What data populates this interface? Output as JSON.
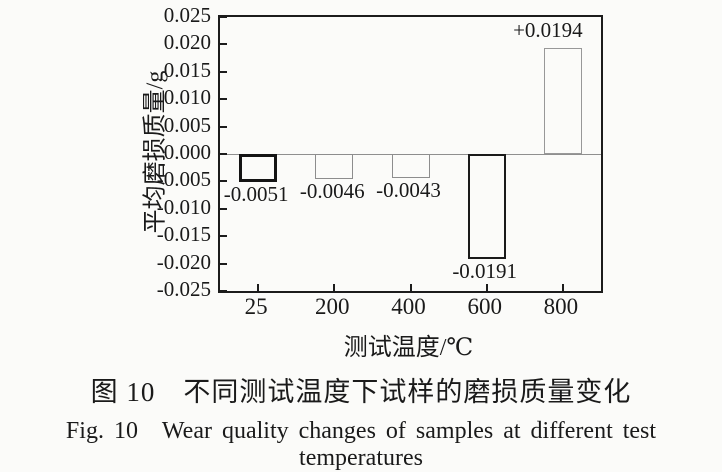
{
  "figure": {
    "caption_zh": "图 10　不同测试温度下试样的磨损质量变化",
    "caption_en": "Fig. 10　Wear quality changes of samples at different test temperatures"
  },
  "chart_data": {
    "type": "bar",
    "categories": [
      "25",
      "200",
      "400",
      "600",
      "800"
    ],
    "values": [
      -0.0051,
      -0.0046,
      -0.0043,
      -0.0191,
      0.0194
    ],
    "bar_labels": [
      "-0.0051",
      "-0.0046",
      "-0.0043",
      "-0.0191",
      "+0.0194"
    ],
    "bar_border_colors": [
      "#141414",
      "#8d8d8d",
      "#8d8d8d",
      "#1a1a1a",
      "#989898"
    ],
    "bar_border_widths": [
      3,
      1.5,
      1.5,
      2.5,
      1.5
    ],
    "bar_fill": "#fbfbf9",
    "title": "",
    "xlabel": "测试温度/℃",
    "ylabel": "平均磨损质量/g",
    "ylim": [
      -0.025,
      0.025
    ],
    "ytick_step": 0.005,
    "yticks": [
      "0.025",
      "0.020",
      "0.015",
      "0.010",
      "0.005",
      "0.000",
      "-0.005",
      "-0.010",
      "-0.015",
      "-0.020",
      "-0.025"
    ],
    "grid": false,
    "zero_line": true,
    "legend": "none",
    "frame_color": "#1c1c1c",
    "zero_line_color": "#8f8f8f"
  }
}
